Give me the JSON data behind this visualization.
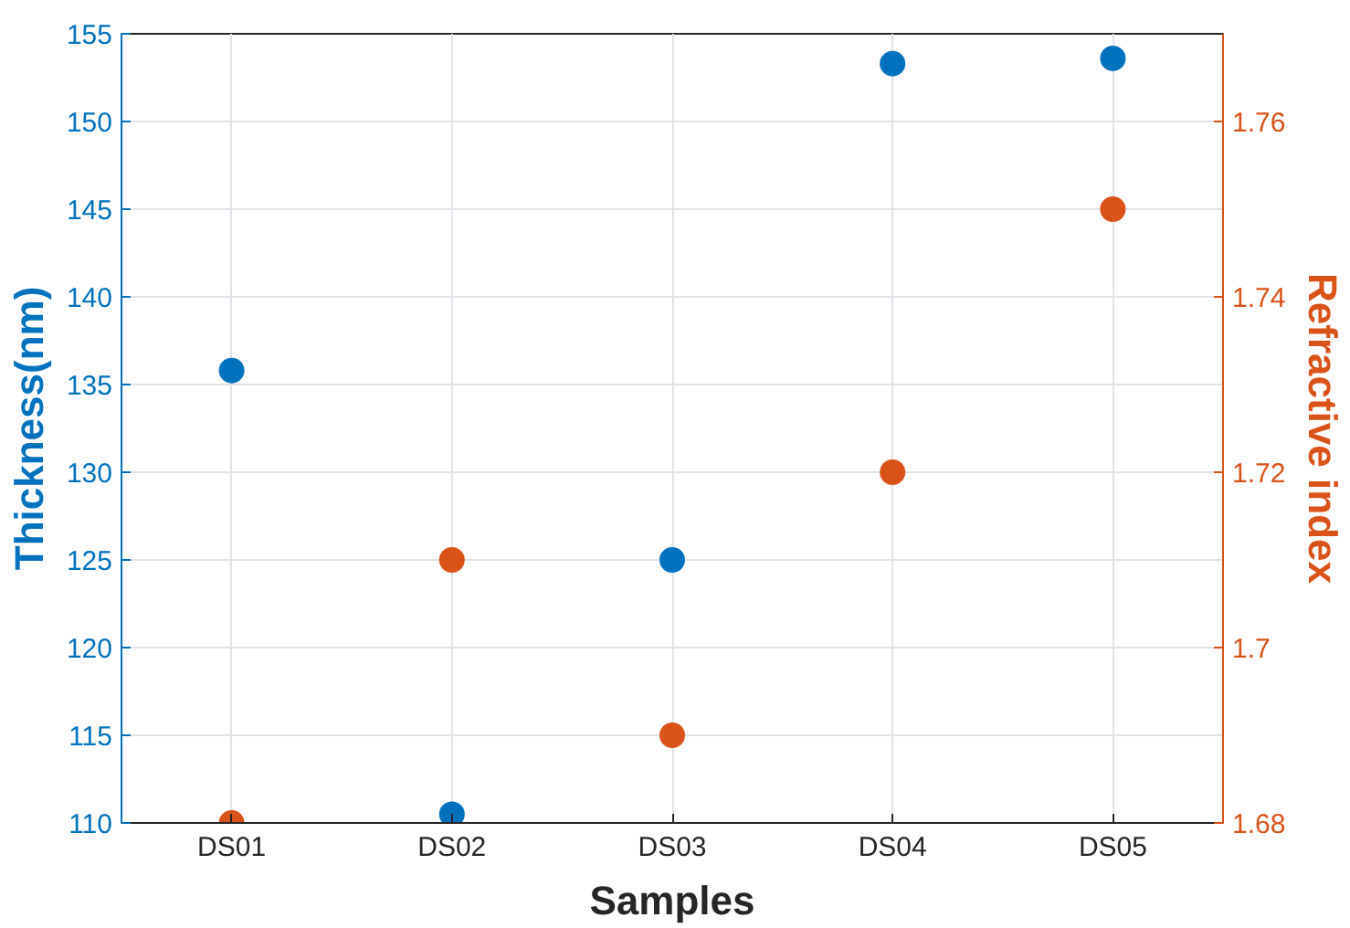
{
  "chart_data": {
    "type": "scatter",
    "xlabel": "Samples",
    "ylabel": "Thickness(nm)",
    "y2label": "Refractive index",
    "categories": [
      "DS01",
      "DS02",
      "DS03",
      "DS04",
      "DS05"
    ],
    "series": [
      {
        "color": "#0072bd",
        "values": [
          135.8,
          110.5,
          125.0,
          153.3,
          153.6
        ]
      },
      {
        "color": "#d95319",
        "values": [
          1.68,
          1.71,
          1.69,
          1.72,
          1.75
        ],
        "axis": "y2"
      }
    ],
    "ylim": [
      110,
      155
    ],
    "yticks": [
      110,
      115,
      120,
      125,
      130,
      135,
      140,
      145,
      150,
      155
    ],
    "y2lim": [
      1.68,
      1.77
    ],
    "y2ticks": [
      1.68,
      1.7,
      1.72,
      1.74,
      1.76
    ],
    "grid": true,
    "marker": "circle"
  }
}
